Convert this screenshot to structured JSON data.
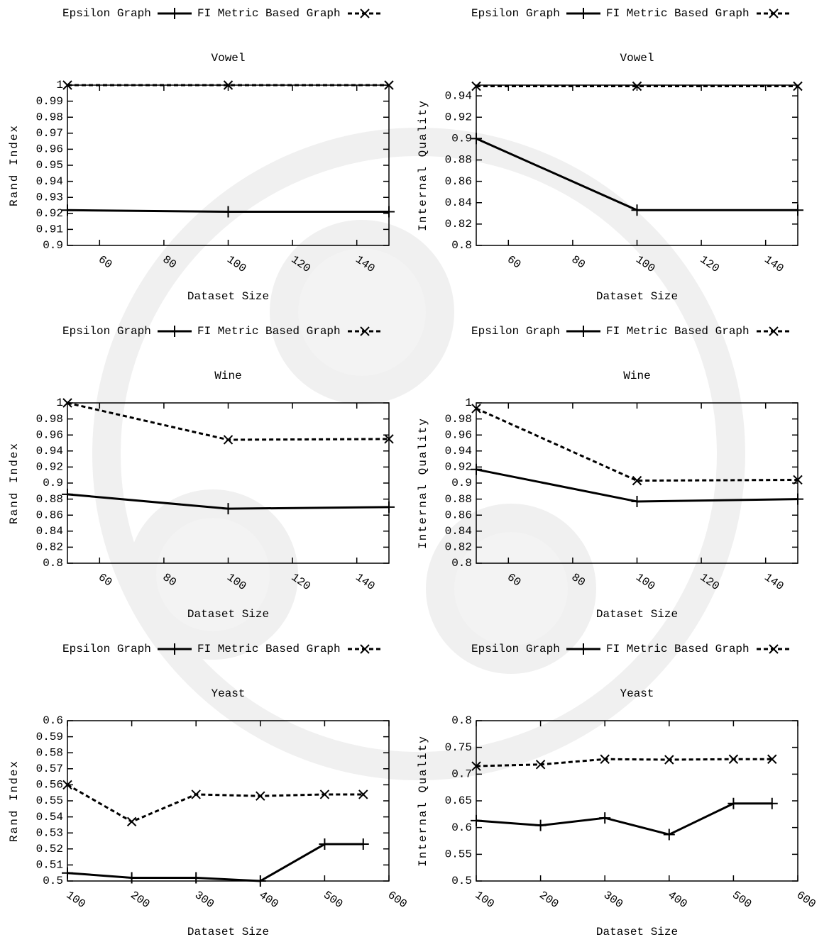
{
  "chart_data": [
    {
      "type": "line",
      "title": "Vowel",
      "xlabel": "Dataset Size",
      "ylabel": "Rand Index",
      "x": [
        50,
        100,
        150
      ],
      "xlim": [
        50,
        150
      ],
      "xticks": [
        60,
        80,
        100,
        120,
        140
      ],
      "ylim": [
        0.9,
        1
      ],
      "yticks": [
        0.9,
        0.91,
        0.92,
        0.93,
        0.94,
        0.95,
        0.96,
        0.97,
        0.98,
        0.99,
        1
      ],
      "series": [
        {
          "name": "Epsilon Graph",
          "color": "#000000",
          "line_style": "solid",
          "marker": "plus",
          "values": [
            0.922,
            0.921,
            0.921
          ]
        },
        {
          "name": "FI Metric Based Graph",
          "color": "#000000",
          "line_style": "dashed",
          "marker": "x",
          "values": [
            1,
            1,
            1
          ]
        }
      ]
    },
    {
      "type": "line",
      "title": "Vowel",
      "xlabel": "Dataset Size",
      "ylabel": "Internal Quality",
      "x": [
        50,
        100,
        150
      ],
      "xlim": [
        50,
        150
      ],
      "xticks": [
        60,
        80,
        100,
        120,
        140
      ],
      "ylim": [
        0.8,
        0.95
      ],
      "yticks": [
        0.8,
        0.82,
        0.84,
        0.86,
        0.88,
        0.9,
        0.92,
        0.94
      ],
      "series": [
        {
          "name": "Epsilon Graph",
          "color": "#000000",
          "line_style": "solid",
          "marker": "plus",
          "values": [
            0.9,
            0.833,
            0.833
          ]
        },
        {
          "name": "FI Metric Based Graph",
          "color": "#000000",
          "line_style": "dashed",
          "marker": "x",
          "values": [
            0.949,
            0.949,
            0.949
          ]
        }
      ]
    },
    {
      "type": "line",
      "title": "Wine",
      "xlabel": "Dataset Size",
      "ylabel": "Rand Index",
      "x": [
        50,
        100,
        150
      ],
      "xlim": [
        50,
        150
      ],
      "xticks": [
        60,
        80,
        100,
        120,
        140
      ],
      "ylim": [
        0.8,
        1
      ],
      "yticks": [
        0.8,
        0.82,
        0.84,
        0.86,
        0.88,
        0.9,
        0.92,
        0.94,
        0.96,
        0.98,
        1
      ],
      "series": [
        {
          "name": "Epsilon Graph",
          "color": "#000000",
          "line_style": "solid",
          "marker": "plus",
          "values": [
            0.886,
            0.868,
            0.87
          ]
        },
        {
          "name": "FI Metric Based Graph",
          "color": "#000000",
          "line_style": "dashed",
          "marker": "x",
          "values": [
            1,
            0.954,
            0.955
          ]
        }
      ]
    },
    {
      "type": "line",
      "title": "Wine",
      "xlabel": "Dataset Size",
      "ylabel": "Internal Quality",
      "x": [
        50,
        100,
        150
      ],
      "xlim": [
        50,
        150
      ],
      "xticks": [
        60,
        80,
        100,
        120,
        140
      ],
      "ylim": [
        0.8,
        1
      ],
      "yticks": [
        0.8,
        0.82,
        0.84,
        0.86,
        0.88,
        0.9,
        0.92,
        0.94,
        0.96,
        0.98,
        1
      ],
      "series": [
        {
          "name": "Epsilon Graph",
          "color": "#000000",
          "line_style": "solid",
          "marker": "plus",
          "values": [
            0.917,
            0.877,
            0.88
          ]
        },
        {
          "name": "FI Metric Based Graph",
          "color": "#000000",
          "line_style": "dashed",
          "marker": "x",
          "values": [
            0.993,
            0.903,
            0.904
          ]
        }
      ]
    },
    {
      "type": "line",
      "title": "Yeast",
      "xlabel": "Dataset Size",
      "ylabel": "Rand Index",
      "x": [
        100,
        200,
        300,
        400,
        500,
        560
      ],
      "xlim": [
        100,
        600
      ],
      "xticks": [
        100,
        200,
        300,
        400,
        500,
        600
      ],
      "ylim": [
        0.5,
        0.6
      ],
      "yticks": [
        0.5,
        0.51,
        0.52,
        0.53,
        0.54,
        0.55,
        0.56,
        0.57,
        0.58,
        0.59,
        0.6
      ],
      "series": [
        {
          "name": "Epsilon Graph",
          "color": "#000000",
          "line_style": "solid",
          "marker": "plus",
          "values": [
            0.505,
            0.502,
            0.502,
            0.5,
            0.523,
            0.523
          ]
        },
        {
          "name": "FI Metric Based Graph",
          "color": "#000000",
          "line_style": "dashed",
          "marker": "x",
          "values": [
            0.56,
            0.537,
            0.554,
            0.553,
            0.554,
            0.554
          ]
        }
      ]
    },
    {
      "type": "line",
      "title": "Yeast",
      "xlabel": "Dataset Size",
      "ylabel": "Internal Quality",
      "x": [
        100,
        200,
        300,
        400,
        500,
        560
      ],
      "xlim": [
        100,
        600
      ],
      "xticks": [
        100,
        200,
        300,
        400,
        500,
        600
      ],
      "ylim": [
        0.5,
        0.8
      ],
      "yticks": [
        0.5,
        0.55,
        0.6,
        0.65,
        0.7,
        0.75,
        0.8
      ],
      "series": [
        {
          "name": "Epsilon Graph",
          "color": "#000000",
          "line_style": "solid",
          "marker": "plus",
          "values": [
            0.613,
            0.604,
            0.618,
            0.587,
            0.645,
            0.645
          ]
        },
        {
          "name": "FI Metric Based Graph",
          "color": "#000000",
          "line_style": "dashed",
          "marker": "x",
          "values": [
            0.715,
            0.718,
            0.728,
            0.727,
            0.728,
            0.728
          ]
        }
      ]
    }
  ]
}
